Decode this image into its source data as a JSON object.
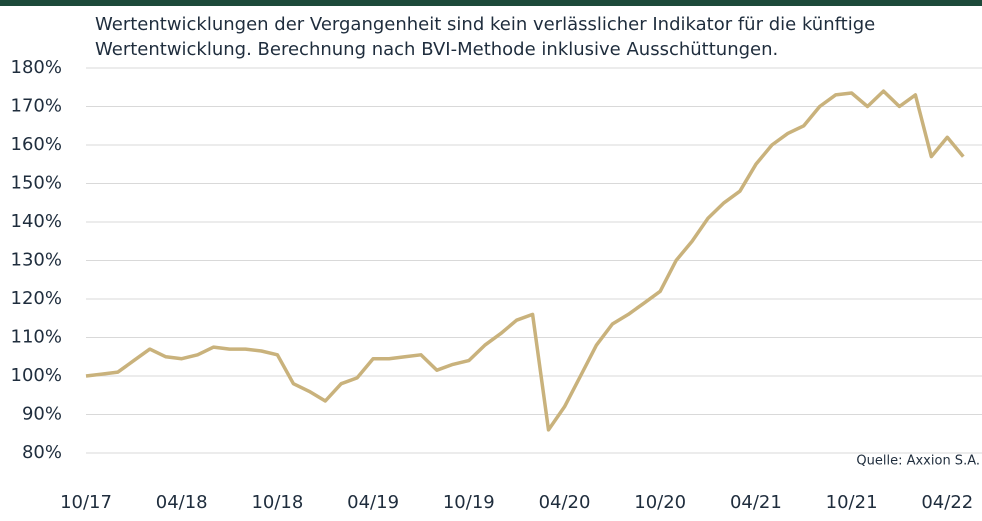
{
  "chart_data": {
    "type": "line",
    "subtitle": [
      "Wertentwicklungen der Vergangenheit sind kein verlässlicher Indikator für die künftige",
      "Wertentwicklung. Berechnung nach BVI-Methode inklusive Ausschüttungen."
    ],
    "annotation": "Quelle: Axxion S.A.",
    "x": [
      "10/17",
      "11/17",
      "12/17",
      "01/18",
      "02/18",
      "03/18",
      "04/18",
      "05/18",
      "06/18",
      "07/18",
      "08/18",
      "09/18",
      "10/18",
      "11/18",
      "12/18",
      "01/19",
      "02/19",
      "03/19",
      "04/19",
      "05/19",
      "06/19",
      "07/19",
      "08/19",
      "09/19",
      "10/19",
      "11/19",
      "12/19",
      "01/20",
      "02/20",
      "03/20",
      "04/20",
      "05/20",
      "06/20",
      "07/20",
      "08/20",
      "09/20",
      "10/20",
      "11/20",
      "12/20",
      "01/21",
      "02/21",
      "03/21",
      "04/21",
      "05/21",
      "06/21",
      "07/21",
      "08/21",
      "09/21",
      "10/21",
      "11/21",
      "12/21",
      "01/22",
      "02/22",
      "03/22",
      "04/22",
      "05/22"
    ],
    "series": [
      {
        "name": "Wertentwicklung",
        "color": "#c9b27c",
        "values": [
          100,
          100.5,
          101,
          104,
          107,
          105,
          104.5,
          105.5,
          107.5,
          107,
          107,
          106.5,
          105.5,
          98,
          96,
          93.5,
          98,
          99.5,
          104.5,
          104.5,
          105,
          105.5,
          101.5,
          103,
          104,
          108,
          111,
          114.5,
          116,
          86,
          92,
          100,
          108,
          113.5,
          116,
          119,
          122,
          130,
          135,
          141,
          145,
          148,
          155,
          160,
          163,
          165,
          170,
          173,
          173.5,
          170,
          174,
          170,
          173,
          157,
          162,
          157
        ]
      }
    ],
    "xticks": [
      "10/17",
      "04/18",
      "10/18",
      "04/19",
      "10/19",
      "04/20",
      "10/20",
      "04/21",
      "10/21",
      "04/22"
    ],
    "ylim": [
      80,
      180
    ],
    "yticks": [
      {
        "value": 80,
        "label": "80%"
      },
      {
        "value": 90,
        "label": "90%"
      },
      {
        "value": 100,
        "label": "100%"
      },
      {
        "value": 110,
        "label": "110%"
      },
      {
        "value": 120,
        "label": "120%"
      },
      {
        "value": 130,
        "label": "130%"
      },
      {
        "value": 140,
        "label": "140%"
      },
      {
        "value": 150,
        "label": "150%"
      },
      {
        "value": 160,
        "label": "160%"
      },
      {
        "value": 170,
        "label": "170%"
      },
      {
        "value": 180,
        "label": "180%"
      }
    ],
    "grid": true
  }
}
